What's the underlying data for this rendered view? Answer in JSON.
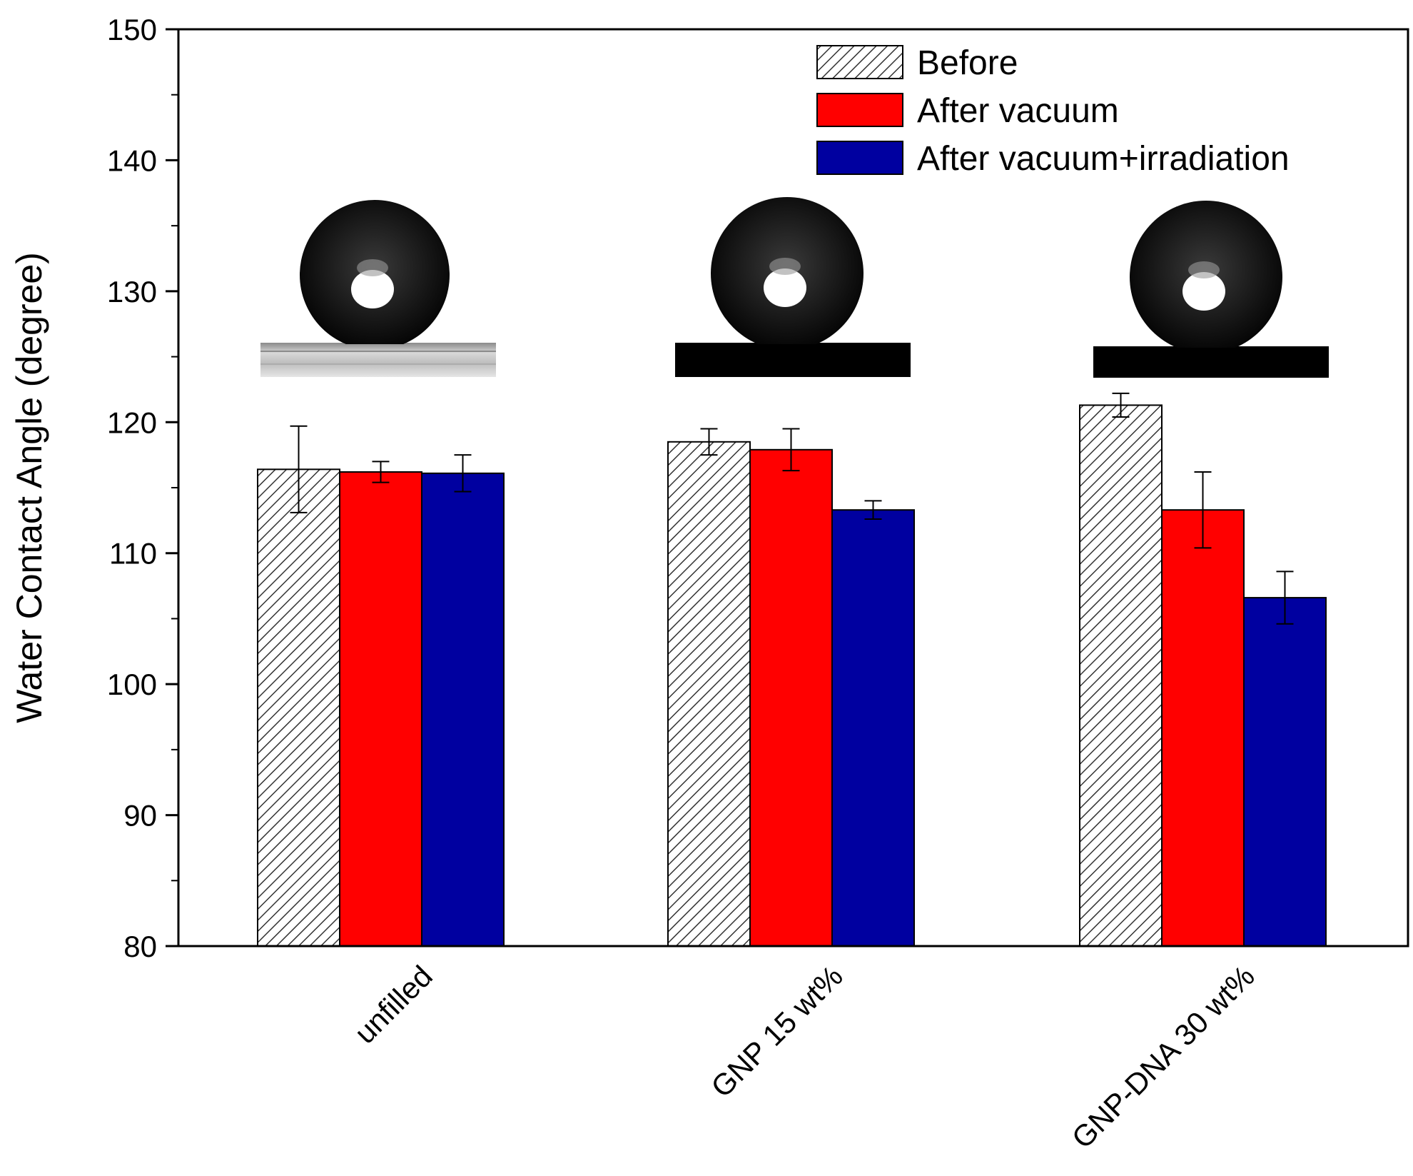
{
  "chart_data": {
    "type": "bar",
    "title": "",
    "xlabel": "",
    "ylabel": "Water Contact Angle (degree)",
    "ylim": [
      80,
      150
    ],
    "yticks": [
      80,
      90,
      100,
      110,
      120,
      130,
      140,
      150
    ],
    "categories": [
      "unfilled",
      "GNP 15 wt%",
      "GNP-DNA 30 wt%"
    ],
    "legend_position": "top-right",
    "grid": false,
    "series": [
      {
        "name": "Before",
        "fill": "hatch",
        "color": "#ffffff",
        "values": [
          116.4,
          118.5,
          121.3
        ],
        "errors": [
          3.3,
          1.0,
          0.9
        ]
      },
      {
        "name": "After vacuum",
        "fill": "solid",
        "color": "#ff0000",
        "values": [
          116.2,
          117.9,
          113.3
        ],
        "errors": [
          0.8,
          1.6,
          2.9
        ]
      },
      {
        "name": "After vacuum+irradiation",
        "fill": "solid",
        "color": "#0000a0",
        "values": [
          116.1,
          113.3,
          106.6
        ],
        "errors": [
          1.4,
          0.7,
          2.0
        ]
      }
    ],
    "insets": [
      {
        "category": "unfilled",
        "description": "water droplet on light substrate"
      },
      {
        "category": "GNP 15 wt%",
        "description": "water droplet on dark substrate"
      },
      {
        "category": "GNP-DNA 30 wt%",
        "description": "water droplet on dark substrate"
      }
    ]
  }
}
